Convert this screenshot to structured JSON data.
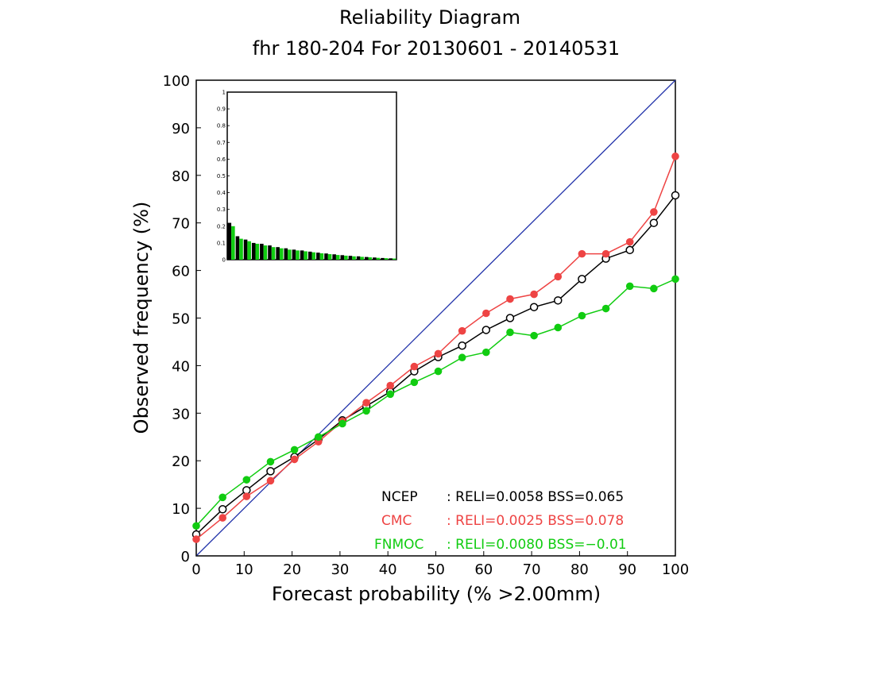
{
  "chart_data": {
    "type": "line",
    "title": "Reliability Diagram",
    "subtitle": "fhr 180-204 For 20130601 - 20140531",
    "xlabel": "Forecast probability (% >2.00mm)",
    "ylabel": "Observed frequency (%)",
    "xlim": [
      0,
      100
    ],
    "ylim": [
      0,
      100
    ],
    "xticks": [
      "0",
      "10",
      "20",
      "30",
      "40",
      "50",
      "60",
      "70",
      "80",
      "90",
      "100"
    ],
    "yticks": [
      "0",
      "10",
      "20",
      "30",
      "40",
      "50",
      "60",
      "70",
      "80",
      "90",
      "100"
    ],
    "grid": false,
    "diagonal_color": "#2233aa",
    "x": [
      0,
      5.5,
      10.5,
      15.5,
      20.5,
      25.5,
      30.5,
      35.5,
      40.5,
      45.5,
      50.5,
      55.5,
      60.5,
      65.5,
      70.5,
      75.5,
      80.5,
      85.5,
      90.5,
      95.5,
      100
    ],
    "series": [
      {
        "name": "NCEP",
        "color": "#000000",
        "marker": "open-circle",
        "values": [
          4.5,
          9.8,
          13.8,
          17.8,
          20.8,
          24.5,
          28.5,
          31.5,
          34.5,
          38.8,
          41.8,
          44.2,
          47.5,
          50.0,
          52.3,
          53.7,
          58.2,
          62.5,
          64.3,
          70.0,
          75.8
        ]
      },
      {
        "name": "CMC",
        "color": "#ee4444",
        "marker": "filled-circle",
        "values": [
          3.5,
          8.0,
          12.5,
          15.8,
          20.3,
          24.0,
          28.3,
          32.2,
          35.8,
          39.8,
          42.5,
          47.3,
          51.0,
          54.0,
          55.0,
          58.7,
          63.5,
          63.5,
          66.0,
          72.3,
          84.0
        ]
      },
      {
        "name": "FNMOC",
        "color": "#11cc11",
        "marker": "filled-circle",
        "values": [
          6.3,
          12.3,
          16.0,
          19.8,
          22.3,
          25.0,
          27.8,
          30.5,
          34.0,
          36.5,
          38.8,
          41.7,
          42.8,
          47.0,
          46.3,
          48.0,
          50.5,
          52.0,
          56.7,
          56.2,
          58.2
        ]
      }
    ],
    "legend": {
      "placement": "bottom-right",
      "entries": [
        {
          "name": "NCEP",
          "stats": ": RELI=0.0058  BSS=0.065",
          "color": "#000000"
        },
        {
          "name": "CMC",
          "stats": ": RELI=0.0025  BSS=0.078",
          "color": "#ee4444"
        },
        {
          "name": "FNMOC",
          "stats": ": RELI=0.0080  BSS=−0.01",
          "color": "#11cc11"
        }
      ]
    },
    "inset": {
      "type": "bar",
      "placement": "top-left",
      "ylim": [
        0,
        1
      ],
      "yticks": [
        "0",
        "0.1",
        "0.2",
        "0.3",
        "0.4",
        "0.5",
        "0.6",
        "0.7",
        "0.8",
        "0.9",
        "1"
      ],
      "series": [
        {
          "name": "NCEP",
          "color": "#000000",
          "values": [
            0.22,
            0.14,
            0.12,
            0.1,
            0.095,
            0.085,
            0.075,
            0.068,
            0.06,
            0.055,
            0.048,
            0.042,
            0.037,
            0.032,
            0.027,
            0.023,
            0.02,
            0.016,
            0.013,
            0.01,
            0.008
          ]
        },
        {
          "name": "FNMOC",
          "color": "#11cc11",
          "values": [
            0.2,
            0.125,
            0.11,
            0.095,
            0.085,
            0.075,
            0.068,
            0.06,
            0.055,
            0.05,
            0.044,
            0.038,
            0.033,
            0.028,
            0.024,
            0.02,
            0.017,
            0.014,
            0.011,
            0.009,
            0.007
          ]
        }
      ]
    }
  }
}
